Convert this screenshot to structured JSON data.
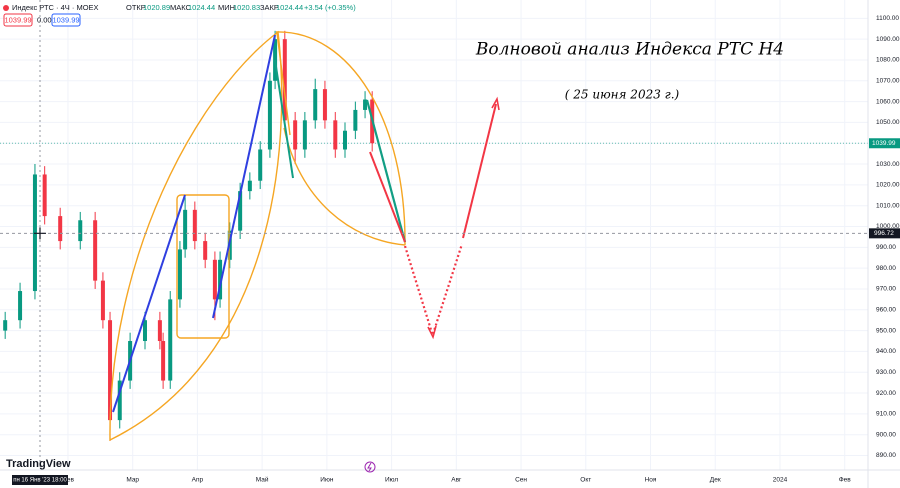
{
  "header": {
    "symbol": "Индекс РТС · 4Ч · MOEX",
    "open_label": "ОТКР",
    "open": "1020.89",
    "high_label": "МАКС",
    "high": "1024.44",
    "low_label": "МИН",
    "low": "1020.83",
    "close_label": "ЗАКР",
    "close": "1024.44",
    "change": "+3.54 (+0.35%)",
    "sell": "1039.99",
    "spread": "0.00",
    "buy": "1039.99"
  },
  "annotations": {
    "title": "Волновой анализ Индекса РТС Н4",
    "date": "( 25 июня 2023 г.)"
  },
  "logo": "TradingView",
  "chart_data": {
    "type": "candlestick",
    "x": [
      -0.97,
      -0.74,
      -0.51,
      -0.36,
      -0.12,
      0.19,
      0.42,
      0.54,
      0.65,
      0.8,
      0.96,
      1.19,
      1.42,
      1.47,
      1.58,
      1.73,
      1.81,
      1.96,
      2.12,
      2.27,
      2.35,
      2.5,
      2.66,
      2.81,
      2.97,
      3.12,
      3.2,
      3.35,
      3.51,
      3.66,
      3.82,
      3.97,
      4.13,
      4.28,
      4.44,
      4.59,
      4.7
    ],
    "open": [
      950,
      955,
      969,
      1025,
      1005,
      993,
      1003,
      974,
      955,
      907,
      926,
      945,
      955,
      945,
      926,
      965,
      989,
      1008,
      993,
      984,
      965,
      984,
      998,
      1017,
      1022,
      1037,
      1070,
      1090,
      1051,
      1037,
      1051,
      1066,
      1051,
      1037,
      1046,
      1056,
      1061
    ],
    "high": [
      959,
      973,
      1030,
      1029,
      1009,
      1007,
      1007,
      978,
      959,
      930,
      949,
      959,
      959,
      949,
      969,
      993,
      1014,
      1012,
      997,
      988,
      988,
      1002,
      1021,
      1026,
      1041,
      1074,
      1094,
      1094,
      1055,
      1055,
      1071,
      1070,
      1055,
      1050,
      1060,
      1065,
      1065
    ],
    "low": [
      946,
      951,
      965,
      1001,
      989,
      989,
      970,
      951,
      897,
      903,
      922,
      941,
      941,
      922,
      922,
      961,
      985,
      989,
      980,
      955,
      961,
      980,
      994,
      1013,
      1018,
      1033,
      1066,
      1047,
      1030,
      1033,
      1047,
      1047,
      1033,
      1033,
      1042,
      1052,
      1036
    ],
    "close": [
      955,
      969,
      1025,
      1005,
      993,
      1003,
      974,
      955,
      907,
      926,
      945,
      955,
      945,
      926,
      965,
      989,
      1008,
      993,
      984,
      965,
      984,
      998,
      1017,
      1022,
      1037,
      1070,
      1090,
      1051,
      1037,
      1051,
      1066,
      1051,
      1037,
      1046,
      1056,
      1061,
      1040
    ],
    "up_color": "#089981",
    "down_color": "#f23645",
    "xlim": [
      -1.05,
      12.36
    ],
    "xticks": [
      {
        "value": 0,
        "label": "Фев"
      },
      {
        "value": 1,
        "label": "Мар"
      },
      {
        "value": 2,
        "label": "Апр"
      },
      {
        "value": 3,
        "label": "Май"
      },
      {
        "value": 4,
        "label": "Июн"
      },
      {
        "value": 5,
        "label": "Июл"
      },
      {
        "value": 6,
        "label": "Авг"
      },
      {
        "value": 7,
        "label": "Сен"
      },
      {
        "value": 8,
        "label": "Окт"
      },
      {
        "value": 9,
        "label": "Ноя"
      },
      {
        "value": 10,
        "label": "Дек"
      },
      {
        "value": 11,
        "label": "2024"
      },
      {
        "value": 12,
        "label": "Фев"
      }
    ],
    "ylim": [
      884,
      1104
    ],
    "yticks": [
      {
        "value": 890,
        "label": "890.00"
      },
      {
        "value": 900,
        "label": "900.00"
      },
      {
        "value": 910,
        "label": "910.00"
      },
      {
        "value": 920,
        "label": "920.00"
      },
      {
        "value": 930,
        "label": "930.00"
      },
      {
        "value": 940,
        "label": "940.00"
      },
      {
        "value": 950,
        "label": "950.00"
      },
      {
        "value": 960,
        "label": "960.00"
      },
      {
        "value": 970,
        "label": "970.00"
      },
      {
        "value": 980,
        "label": "980.00"
      },
      {
        "value": 990,
        "label": "990.00"
      },
      {
        "value": 1000,
        "label": "1000.00"
      },
      {
        "value": 1010,
        "label": "1010.00"
      },
      {
        "value": 1020,
        "label": "1020.00"
      },
      {
        "value": 1030,
        "label": "1030.00"
      },
      {
        "value": 1040,
        "label": "1040.00"
      },
      {
        "value": 1050,
        "label": "1050.00"
      },
      {
        "value": 1060,
        "label": "1060.00"
      },
      {
        "value": 1070,
        "label": "1070.00"
      },
      {
        "value": 1080,
        "label": "1080.00"
      },
      {
        "value": 1090,
        "label": "1090.00"
      },
      {
        "value": 1100,
        "label": "1100.00"
      }
    ],
    "grid": true,
    "last_price": 1039.99,
    "last_price_color": "#089981",
    "crosshair_price": 996.72,
    "crosshair_time": "пн 16 Янв '23 18:00"
  }
}
